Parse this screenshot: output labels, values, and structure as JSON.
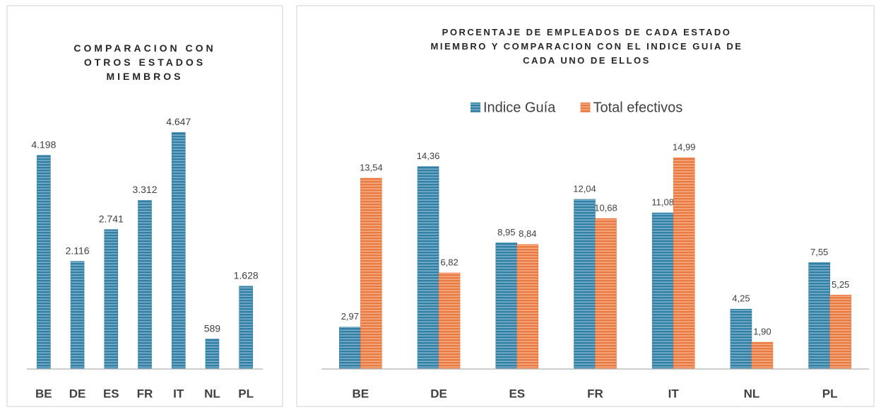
{
  "chart_data": [
    {
      "type": "bar",
      "title": "COMPARACION CON OTROS ESTADOS MIEMBROS",
      "categories": [
        "BE",
        "DE",
        "ES",
        "FR",
        "IT",
        "NL",
        "PL"
      ],
      "values": [
        4198,
        2116,
        2741,
        3312,
        4647,
        589,
        1628
      ],
      "value_labels": [
        "4.198",
        "2.116",
        "2.741",
        "3.312",
        "4.647",
        "589",
        "1.628"
      ],
      "color": "#2f7ea6",
      "ylim": [
        0,
        5000
      ]
    },
    {
      "type": "bar",
      "title": "PORCENTAJE DE EMPLEADOS DE CADA ESTADO MIEMBRO Y COMPARACION CON EL INDICE GUIA DE CADA UNO DE ELLOS",
      "categories": [
        "BE",
        "DE",
        "ES",
        "FR",
        "IT",
        "NL",
        "PL"
      ],
      "series": [
        {
          "name": "Indice Guía",
          "color": "#2f7ea6",
          "values": [
            2.97,
            14.36,
            8.95,
            12.04,
            11.08,
            4.25,
            7.55
          ],
          "value_labels": [
            "2,97",
            "14,36",
            "8,95",
            "12,04",
            "11,08",
            "4,25",
            "7,55"
          ]
        },
        {
          "name": "Total efectivos",
          "color": "#ea7a3f",
          "values": [
            13.54,
            6.82,
            8.84,
            10.68,
            14.99,
            1.9,
            5.25
          ],
          "value_labels": [
            "13,54",
            "6,82",
            "8,84",
            "10,68",
            "14,99",
            "1,90",
            "5,25"
          ]
        }
      ],
      "ylim": [
        0,
        16
      ],
      "legend": "top"
    }
  ]
}
